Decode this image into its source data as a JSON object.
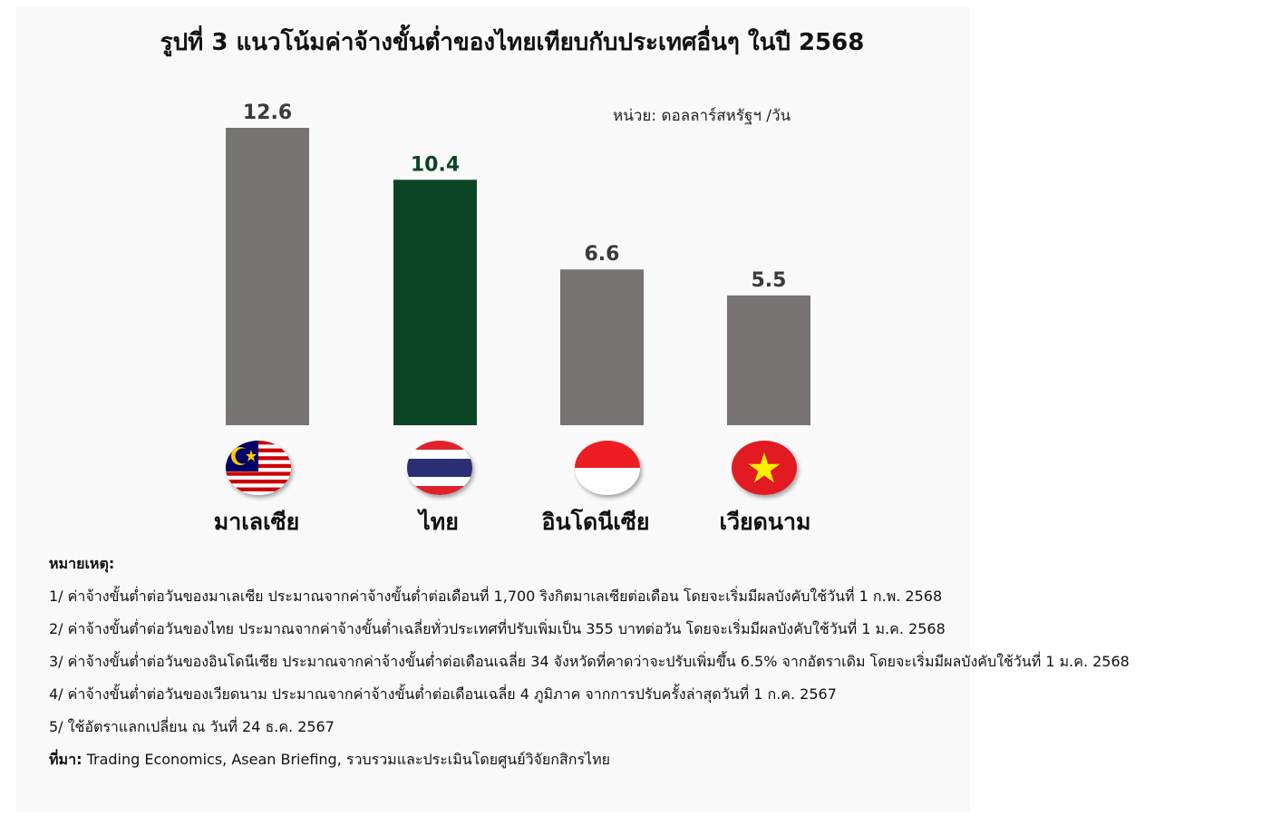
{
  "title": "รูปที่ 3 แนวโน้มค่าจ้างขั้นต่ำของไทยเทียบกับประเทศอื่นๆ ในปี 2568",
  "unit": "หน่วย: ดอลลาร์สหรัฐฯ /วัน",
  "colors": {
    "default_bar": "#787373",
    "highlight_bar": "#0c4526"
  },
  "chart_data": {
    "type": "bar",
    "categories": [
      "มาเลเซีย",
      "ไทย",
      "อินโดนีเซีย",
      "เวียดนาม"
    ],
    "values": [
      12.6,
      10.4,
      6.6,
      5.5
    ],
    "value_labels": [
      "12.6",
      "10.4",
      "6.6",
      "5.5"
    ],
    "highlight_index": 1,
    "ylim": [
      0,
      12.6
    ],
    "grid": false,
    "legend": "none",
    "flags": [
      "malaysia-flag",
      "thailand-flag",
      "indonesia-flag",
      "vietnam-flag"
    ]
  },
  "notes": {
    "title": "หมายเหตุ:",
    "lines": [
      "1/ ค่าจ้างขั้นต่ำต่อวันของมาเลเซีย ประมาณจากค่าจ้างขั้นต่ำต่อเดือนที่ 1,700 ริงกิตมาเลเซียต่อเดือน โดยจะเริ่มมีผลบังคับใช้วันที่ 1 ก.พ. 2568",
      "2/ ค่าจ้างขั้นต่ำต่อวันของไทย ประมาณจากค่าจ้างขั้นต่ำเฉลี่ยทั่วประเทศที่ปรับเพิ่มเป็น 355 บาทต่อวัน โดยจะเริ่มมีผลบังคับใช้วันที่ 1 ม.ค. 2568",
      "3/ ค่าจ้างขั้นต่ำต่อวันของอินโดนีเซีย ประมาณจากค่าจ้างขั้นต่ำต่อเดือนเฉลี่ย 34 จังหวัดที่คาดว่าจะปรับเพิ่มขึ้น 6.5% จากอัตราเดิม โดยจะเริ่มมีผลบังคับใช้วันที่ 1 ม.ค. 2568",
      "4/ ค่าจ้างขั้นต่ำต่อวันของเวียดนาม ประมาณจากค่าจ้างขั้นต่ำต่อเดือนเฉลี่ย 4 ภูมิภาค จากการปรับครั้งล่าสุดวันที่ 1 ก.ค. 2567",
      "5/ ใช้อัตราแลกเปลี่ยน ณ วันที่ 24 ธ.ค. 2567"
    ],
    "source_label": "ที่มา:",
    "source_text": " Trading Economics, Asean Briefing, รวบรวมและประเมินโดยศูนย์วิจัยกสิกรไทย"
  }
}
